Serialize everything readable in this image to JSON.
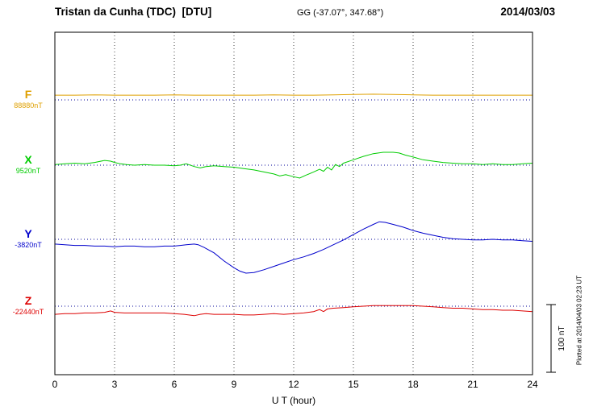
{
  "header": {
    "station": "Tristan da Cunha (TDC)  [DTU]",
    "coords": "GG (-37.07°, 347.68°)",
    "date": "2014/03/03"
  },
  "xaxis": {
    "label": "U T (hour)",
    "ticks": [
      0,
      3,
      6,
      9,
      12,
      15,
      18,
      21,
      24
    ]
  },
  "scale_bar": {
    "label": "100 nT",
    "nT": 100
  },
  "side_note": "Plotted at 2014/04/03 02:23 UT",
  "chart_data": {
    "type": "line",
    "title": "Magnetogram, Tristan da Cunha (TDC), 2014/03/03",
    "xlabel": "U T (hour)",
    "x_range": [
      0,
      24
    ],
    "grid": "dotted vertical every 3 h, dotted horizontal baseline per component",
    "baseline_color": "#000099",
    "gridline_color": "#444444",
    "y_scale_bar_nT": 100,
    "series": [
      {
        "id": "F",
        "label": "F",
        "baseline_label": "88880nT",
        "baseline_nT": 88880,
        "color": "#DFA000",
        "points_unit": "[hour, offset nT from baseline]",
        "points": [
          [
            0,
            7
          ],
          [
            1,
            7
          ],
          [
            2,
            7.5
          ],
          [
            3,
            7
          ],
          [
            4,
            7
          ],
          [
            5,
            7
          ],
          [
            6,
            7.5
          ],
          [
            7,
            7
          ],
          [
            8,
            7
          ],
          [
            9,
            7
          ],
          [
            10,
            7
          ],
          [
            11,
            7.5
          ],
          [
            12,
            7
          ],
          [
            13,
            7
          ],
          [
            14,
            7.5
          ],
          [
            15,
            8
          ],
          [
            16,
            8.5
          ],
          [
            17,
            8
          ],
          [
            18,
            7.5
          ],
          [
            19,
            7
          ],
          [
            20,
            7
          ],
          [
            21,
            7
          ],
          [
            22,
            7
          ],
          [
            23,
            7
          ],
          [
            24,
            7
          ]
        ]
      },
      {
        "id": "X",
        "label": "X",
        "baseline_label": "9520nT",
        "baseline_nT": 9520,
        "color": "#00CC00",
        "points_unit": "[hour, offset nT from baseline]",
        "points": [
          [
            0,
            1
          ],
          [
            0.5,
            2
          ],
          [
            1,
            3
          ],
          [
            1.5,
            2
          ],
          [
            2,
            4
          ],
          [
            2.5,
            7
          ],
          [
            2.8,
            6
          ],
          [
            3,
            4
          ],
          [
            3.3,
            2
          ],
          [
            3.6,
            1
          ],
          [
            4,
            0
          ],
          [
            4.5,
            1
          ],
          [
            5,
            0
          ],
          [
            5.5,
            0
          ],
          [
            6,
            -1
          ],
          [
            6.3,
            0
          ],
          [
            6.6,
            2
          ],
          [
            7,
            -2
          ],
          [
            7.3,
            -4
          ],
          [
            7.6,
            -2
          ],
          [
            8,
            -1
          ],
          [
            8.5,
            -2
          ],
          [
            9,
            -3
          ],
          [
            9.5,
            -5
          ],
          [
            10,
            -7
          ],
          [
            10.5,
            -10
          ],
          [
            11,
            -13
          ],
          [
            11.3,
            -16
          ],
          [
            11.6,
            -14
          ],
          [
            12,
            -17
          ],
          [
            12.3,
            -19
          ],
          [
            12.6,
            -15
          ],
          [
            13,
            -10
          ],
          [
            13.3,
            -6
          ],
          [
            13.5,
            -9
          ],
          [
            13.7,
            -3
          ],
          [
            13.9,
            -7
          ],
          [
            14.1,
            1
          ],
          [
            14.3,
            -2
          ],
          [
            14.5,
            3
          ],
          [
            15,
            8
          ],
          [
            15.5,
            13
          ],
          [
            16,
            17
          ],
          [
            16.5,
            19
          ],
          [
            17,
            19
          ],
          [
            17.3,
            18
          ],
          [
            17.6,
            15
          ],
          [
            18,
            12
          ],
          [
            18.5,
            8
          ],
          [
            19,
            6
          ],
          [
            19.5,
            4
          ],
          [
            20,
            3
          ],
          [
            20.5,
            2
          ],
          [
            21,
            2
          ],
          [
            21.5,
            1
          ],
          [
            22,
            2
          ],
          [
            22.5,
            1
          ],
          [
            23,
            1
          ],
          [
            23.5,
            2
          ],
          [
            24,
            3
          ]
        ]
      },
      {
        "id": "Y",
        "label": "Y",
        "baseline_label": "-3820nT",
        "baseline_nT": -3820,
        "color": "#0000CC",
        "points_unit": "[hour, offset nT from baseline]",
        "points": [
          [
            0,
            -7
          ],
          [
            0.5,
            -8
          ],
          [
            1,
            -9
          ],
          [
            1.5,
            -9
          ],
          [
            2,
            -10
          ],
          [
            2.5,
            -10
          ],
          [
            3,
            -11
          ],
          [
            3.5,
            -10
          ],
          [
            4,
            -10
          ],
          [
            4.5,
            -11
          ],
          [
            5,
            -11
          ],
          [
            5.5,
            -10
          ],
          [
            6,
            -10
          ],
          [
            6.3,
            -9
          ],
          [
            6.6,
            -8
          ],
          [
            7,
            -7
          ],
          [
            7.2,
            -8
          ],
          [
            7.5,
            -12
          ],
          [
            8,
            -20
          ],
          [
            8.5,
            -32
          ],
          [
            9,
            -42
          ],
          [
            9.3,
            -47
          ],
          [
            9.6,
            -50
          ],
          [
            10,
            -49
          ],
          [
            10.5,
            -45
          ],
          [
            11,
            -40
          ],
          [
            11.5,
            -35
          ],
          [
            12,
            -30
          ],
          [
            12.5,
            -26
          ],
          [
            13,
            -21
          ],
          [
            13.5,
            -15
          ],
          [
            14,
            -8
          ],
          [
            14.5,
            -1
          ],
          [
            15,
            7
          ],
          [
            15.5,
            15
          ],
          [
            16,
            22
          ],
          [
            16.3,
            26
          ],
          [
            16.6,
            25
          ],
          [
            17,
            22
          ],
          [
            17.5,
            18
          ],
          [
            18,
            13
          ],
          [
            18.5,
            9
          ],
          [
            19,
            6
          ],
          [
            19.5,
            3
          ],
          [
            20,
            1
          ],
          [
            20.5,
            0
          ],
          [
            21,
            -1
          ],
          [
            21.5,
            -1
          ],
          [
            22,
            0
          ],
          [
            22.5,
            -1
          ],
          [
            23,
            -1
          ],
          [
            23.5,
            -2
          ],
          [
            24,
            -3
          ]
        ]
      },
      {
        "id": "Z",
        "label": "Z",
        "baseline_label": "-22440nT",
        "baseline_nT": -22440,
        "color": "#DD0000",
        "points_unit": "[hour, offset nT from baseline]",
        "points": [
          [
            0,
            -12
          ],
          [
            0.5,
            -11
          ],
          [
            1,
            -11
          ],
          [
            1.5,
            -10
          ],
          [
            2,
            -10
          ],
          [
            2.5,
            -9
          ],
          [
            2.8,
            -7
          ],
          [
            3,
            -9
          ],
          [
            3.5,
            -10
          ],
          [
            4,
            -10
          ],
          [
            4.5,
            -10
          ],
          [
            5,
            -10
          ],
          [
            5.5,
            -10
          ],
          [
            6,
            -11
          ],
          [
            6.5,
            -12
          ],
          [
            7,
            -14
          ],
          [
            7.3,
            -12
          ],
          [
            7.6,
            -11
          ],
          [
            8,
            -12
          ],
          [
            8.5,
            -12
          ],
          [
            9,
            -12
          ],
          [
            9.5,
            -13
          ],
          [
            10,
            -13
          ],
          [
            10.5,
            -12
          ],
          [
            11,
            -11
          ],
          [
            11.5,
            -12
          ],
          [
            12,
            -11
          ],
          [
            12.5,
            -10
          ],
          [
            13,
            -8
          ],
          [
            13.3,
            -5
          ],
          [
            13.5,
            -8
          ],
          [
            13.7,
            -4
          ],
          [
            14,
            -3
          ],
          [
            14.5,
            -2
          ],
          [
            15,
            -1
          ],
          [
            15.5,
            0
          ],
          [
            16,
            1
          ],
          [
            16.5,
            1
          ],
          [
            17,
            1
          ],
          [
            17.5,
            1
          ],
          [
            18,
            1
          ],
          [
            18.5,
            0
          ],
          [
            19,
            -1
          ],
          [
            19.5,
            -2
          ],
          [
            20,
            -3
          ],
          [
            20.5,
            -3
          ],
          [
            21,
            -4
          ],
          [
            21.5,
            -5
          ],
          [
            22,
            -5
          ],
          [
            22.5,
            -6
          ],
          [
            23,
            -6
          ],
          [
            23.5,
            -7
          ],
          [
            24,
            -8
          ]
        ]
      }
    ]
  }
}
